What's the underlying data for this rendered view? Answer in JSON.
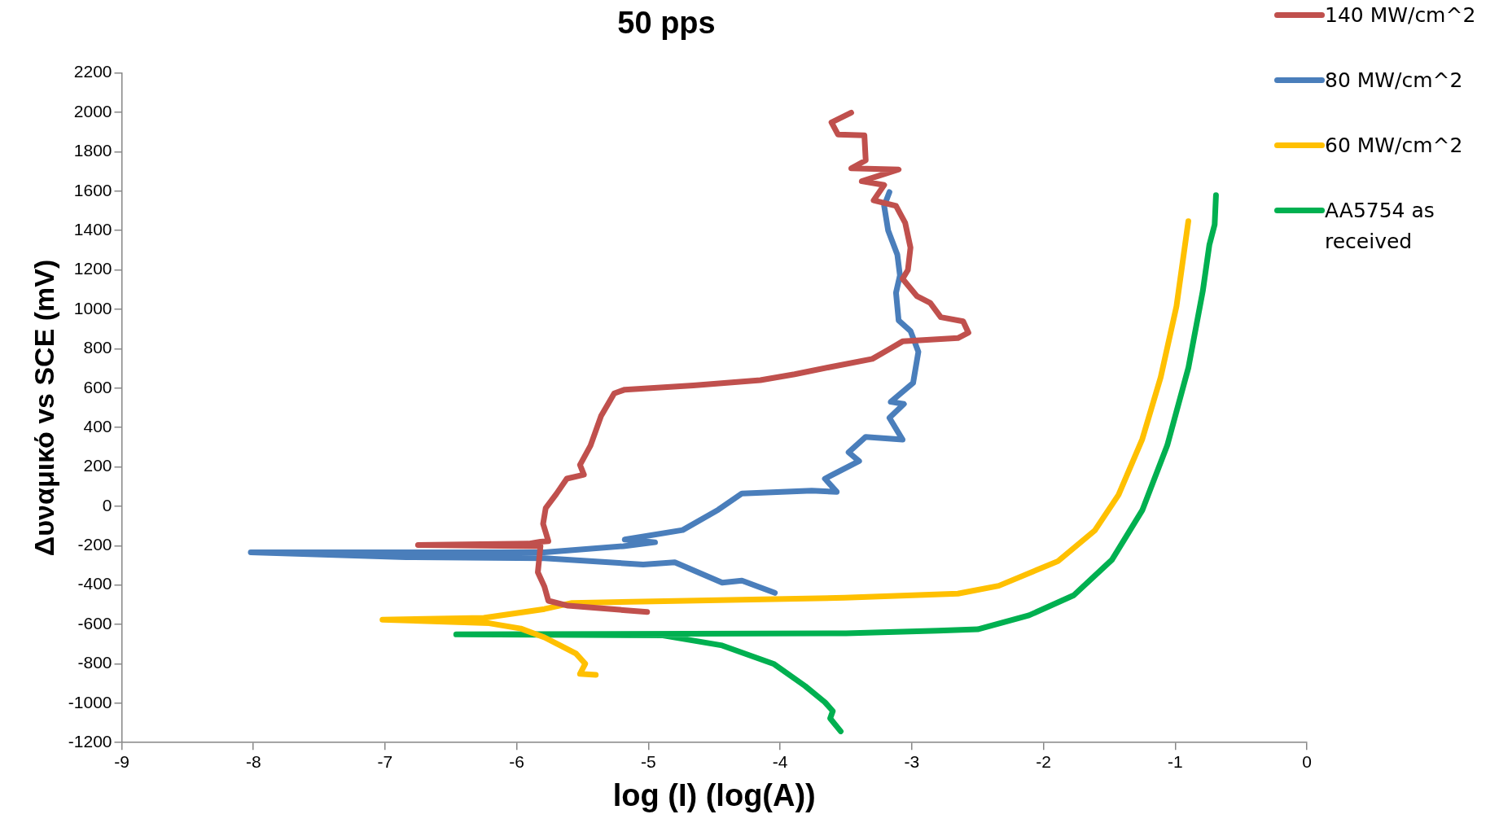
{
  "chart_data": {
    "type": "line",
    "title": "50 pps",
    "xlabel": "log (I) (log(A))",
    "ylabel": "Δυναμικό vs SCE (mV)",
    "xlim": [
      -9,
      0
    ],
    "xticks": [
      -9,
      -8,
      -7,
      -6,
      -5,
      -4,
      -3,
      -2,
      -1,
      0
    ],
    "ylim": [
      -1200,
      2200
    ],
    "yticks": [
      -1200,
      -1000,
      -800,
      -600,
      -400,
      -200,
      0,
      200,
      400,
      600,
      800,
      1000,
      1200,
      1400,
      1600,
      1800,
      2000,
      2200
    ],
    "grid": false,
    "legend": "top right",
    "marker": "none",
    "line_style": "solid",
    "series": [
      {
        "name": "140 MW/cm^2",
        "color": "#c0504d",
        "x": [
          -5.01,
          -5.61,
          -5.76,
          -5.79,
          -5.84,
          -5.82,
          -6.75,
          -5.91,
          -5.82,
          -5.76,
          -5.8,
          -5.78,
          -5.7,
          -5.62,
          -5.49,
          -5.52,
          -5.44,
          -5.36,
          -5.26,
          -5.18,
          -4.66,
          -4.15,
          -3.89,
          -3.63,
          -3.3,
          -3.18,
          -3.07,
          -2.65,
          -2.57,
          -2.61,
          -2.78,
          -2.86,
          -2.96,
          -3.07,
          -3.03,
          -3.01,
          -3.05,
          -3.12,
          -3.29,
          -3.21,
          -3.38,
          -3.1,
          -3.46,
          -3.35,
          -3.36,
          -3.56,
          -3.61,
          -3.46
        ],
        "values": [
          -537,
          -505,
          -480,
          -408,
          -335,
          -203,
          -197,
          -190,
          -180,
          -177,
          -89,
          -9,
          62,
          140,
          160,
          210,
          308,
          458,
          573,
          592,
          613,
          640,
          670,
          705,
          748,
          794,
          837,
          854,
          881,
          939,
          960,
          1032,
          1066,
          1155,
          1199,
          1313,
          1438,
          1525,
          1553,
          1631,
          1650,
          1710,
          1716,
          1756,
          1883,
          1887,
          1949,
          1998
        ]
      },
      {
        "name": "80 MW/cm^2",
        "color": "#4a7ebb",
        "x": [
          -4.04,
          -4.29,
          -4.44,
          -4.8,
          -5.04,
          -5.79,
          -6.84,
          -8.02,
          -5.79,
          -5.19,
          -4.95,
          -5.18,
          -4.74,
          -4.47,
          -4.29,
          -3.76,
          -3.57,
          -3.66,
          -3.4,
          -3.48,
          -3.35,
          -3.07,
          -3.17,
          -3.06,
          -3.16,
          -2.99,
          -2.95,
          -3.01,
          -3.1,
          -3.12,
          -3.09,
          -3.11,
          -3.18,
          -3.21,
          -3.17
        ],
        "values": [
          -440,
          -378,
          -388,
          -285,
          -296,
          -264,
          -259,
          -234,
          -234,
          -203,
          -183,
          -169,
          -121,
          -18,
          65,
          79,
          73,
          140,
          229,
          274,
          352,
          338,
          449,
          519,
          530,
          626,
          784,
          890,
          943,
          1084,
          1172,
          1278,
          1401,
          1525,
          1595
        ]
      },
      {
        "name": "60 MW/cm^2",
        "color": "#ffc000",
        "x": [
          -5.4,
          -5.52,
          -5.48,
          -5.55,
          -5.67,
          -5.79,
          -5.97,
          -6.21,
          -7.02,
          -6.25,
          -5.79,
          -5.58,
          -3.51,
          -2.65,
          -2.34,
          -1.89,
          -1.61,
          -1.43,
          -1.25,
          -1.11,
          -0.99,
          -0.9
        ],
        "values": [
          -856,
          -851,
          -800,
          -748,
          -707,
          -666,
          -621,
          -594,
          -576,
          -567,
          -522,
          -491,
          -465,
          -444,
          -404,
          -279,
          -123,
          58,
          340,
          655,
          1015,
          1447
        ]
      },
      {
        "name": "AA5754 as received",
        "color": "#00b050",
        "x": [
          -3.54,
          -3.62,
          -3.6,
          -3.66,
          -3.81,
          -4.05,
          -4.44,
          -4.89,
          -6.46,
          -3.5,
          -2.8,
          -2.5,
          -2.11,
          -1.77,
          -1.48,
          -1.25,
          -1.06,
          -0.9,
          -0.79,
          -0.74,
          -0.7,
          -0.69
        ],
        "values": [
          -1143,
          -1077,
          -1040,
          -995,
          -913,
          -800,
          -707,
          -656,
          -651,
          -645,
          -632,
          -625,
          -554,
          -452,
          -272,
          -21,
          309,
          702,
          1093,
          1328,
          1430,
          1579
        ]
      }
    ]
  }
}
